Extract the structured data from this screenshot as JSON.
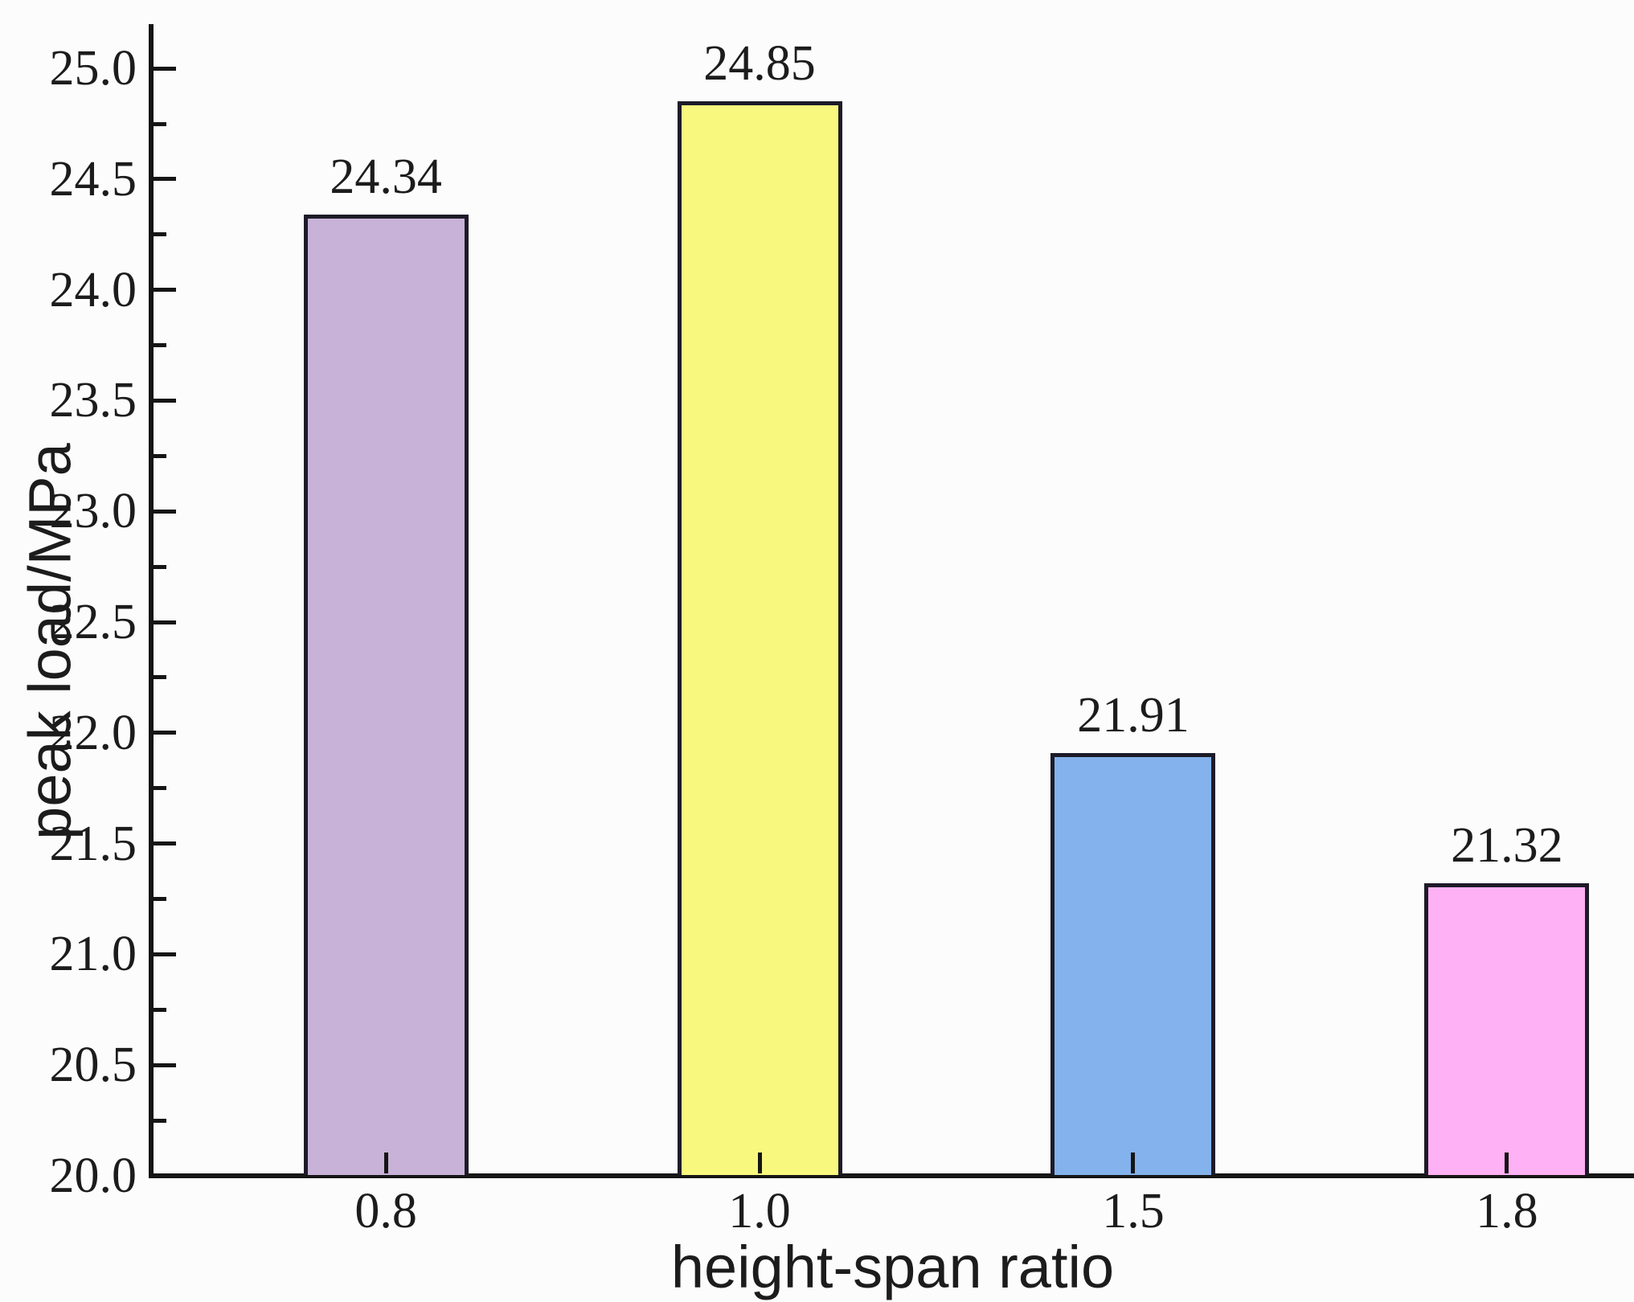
{
  "chart_data": {
    "type": "bar",
    "title": "",
    "categories": [
      "0.8",
      "1.0",
      "1.5",
      "1.8"
    ],
    "values": [
      24.34,
      24.85,
      21.91,
      21.32
    ],
    "bar_value_labels": [
      "24.34",
      "24.85",
      "21.91",
      "21.32"
    ],
    "bar_colors": [
      "#c8b2d8",
      "#f8f87f",
      "#83b2ec",
      "#feb1f4"
    ],
    "bar_border_color": "#1d1b28",
    "xlabel": "height-span ratio",
    "ylabel": "peak load/MPa",
    "x_tick_labels": [
      "0.8",
      "1.0",
      "1.5",
      "1.8"
    ],
    "y_tick_labels": [
      "20.0",
      "20.5",
      "21.0",
      "21.5",
      "22.0",
      "22.5",
      "23.0",
      "23.5",
      "24.0",
      "24.5",
      "25.0"
    ],
    "ylim": [
      20.0,
      25.2
    ],
    "y_major_step": 0.5,
    "y_minor_step": 0.25,
    "grid": false,
    "legend": "none",
    "axis_color": "#151515",
    "text_color": "#1c1c1c",
    "background_color": "#fcfcfc"
  }
}
